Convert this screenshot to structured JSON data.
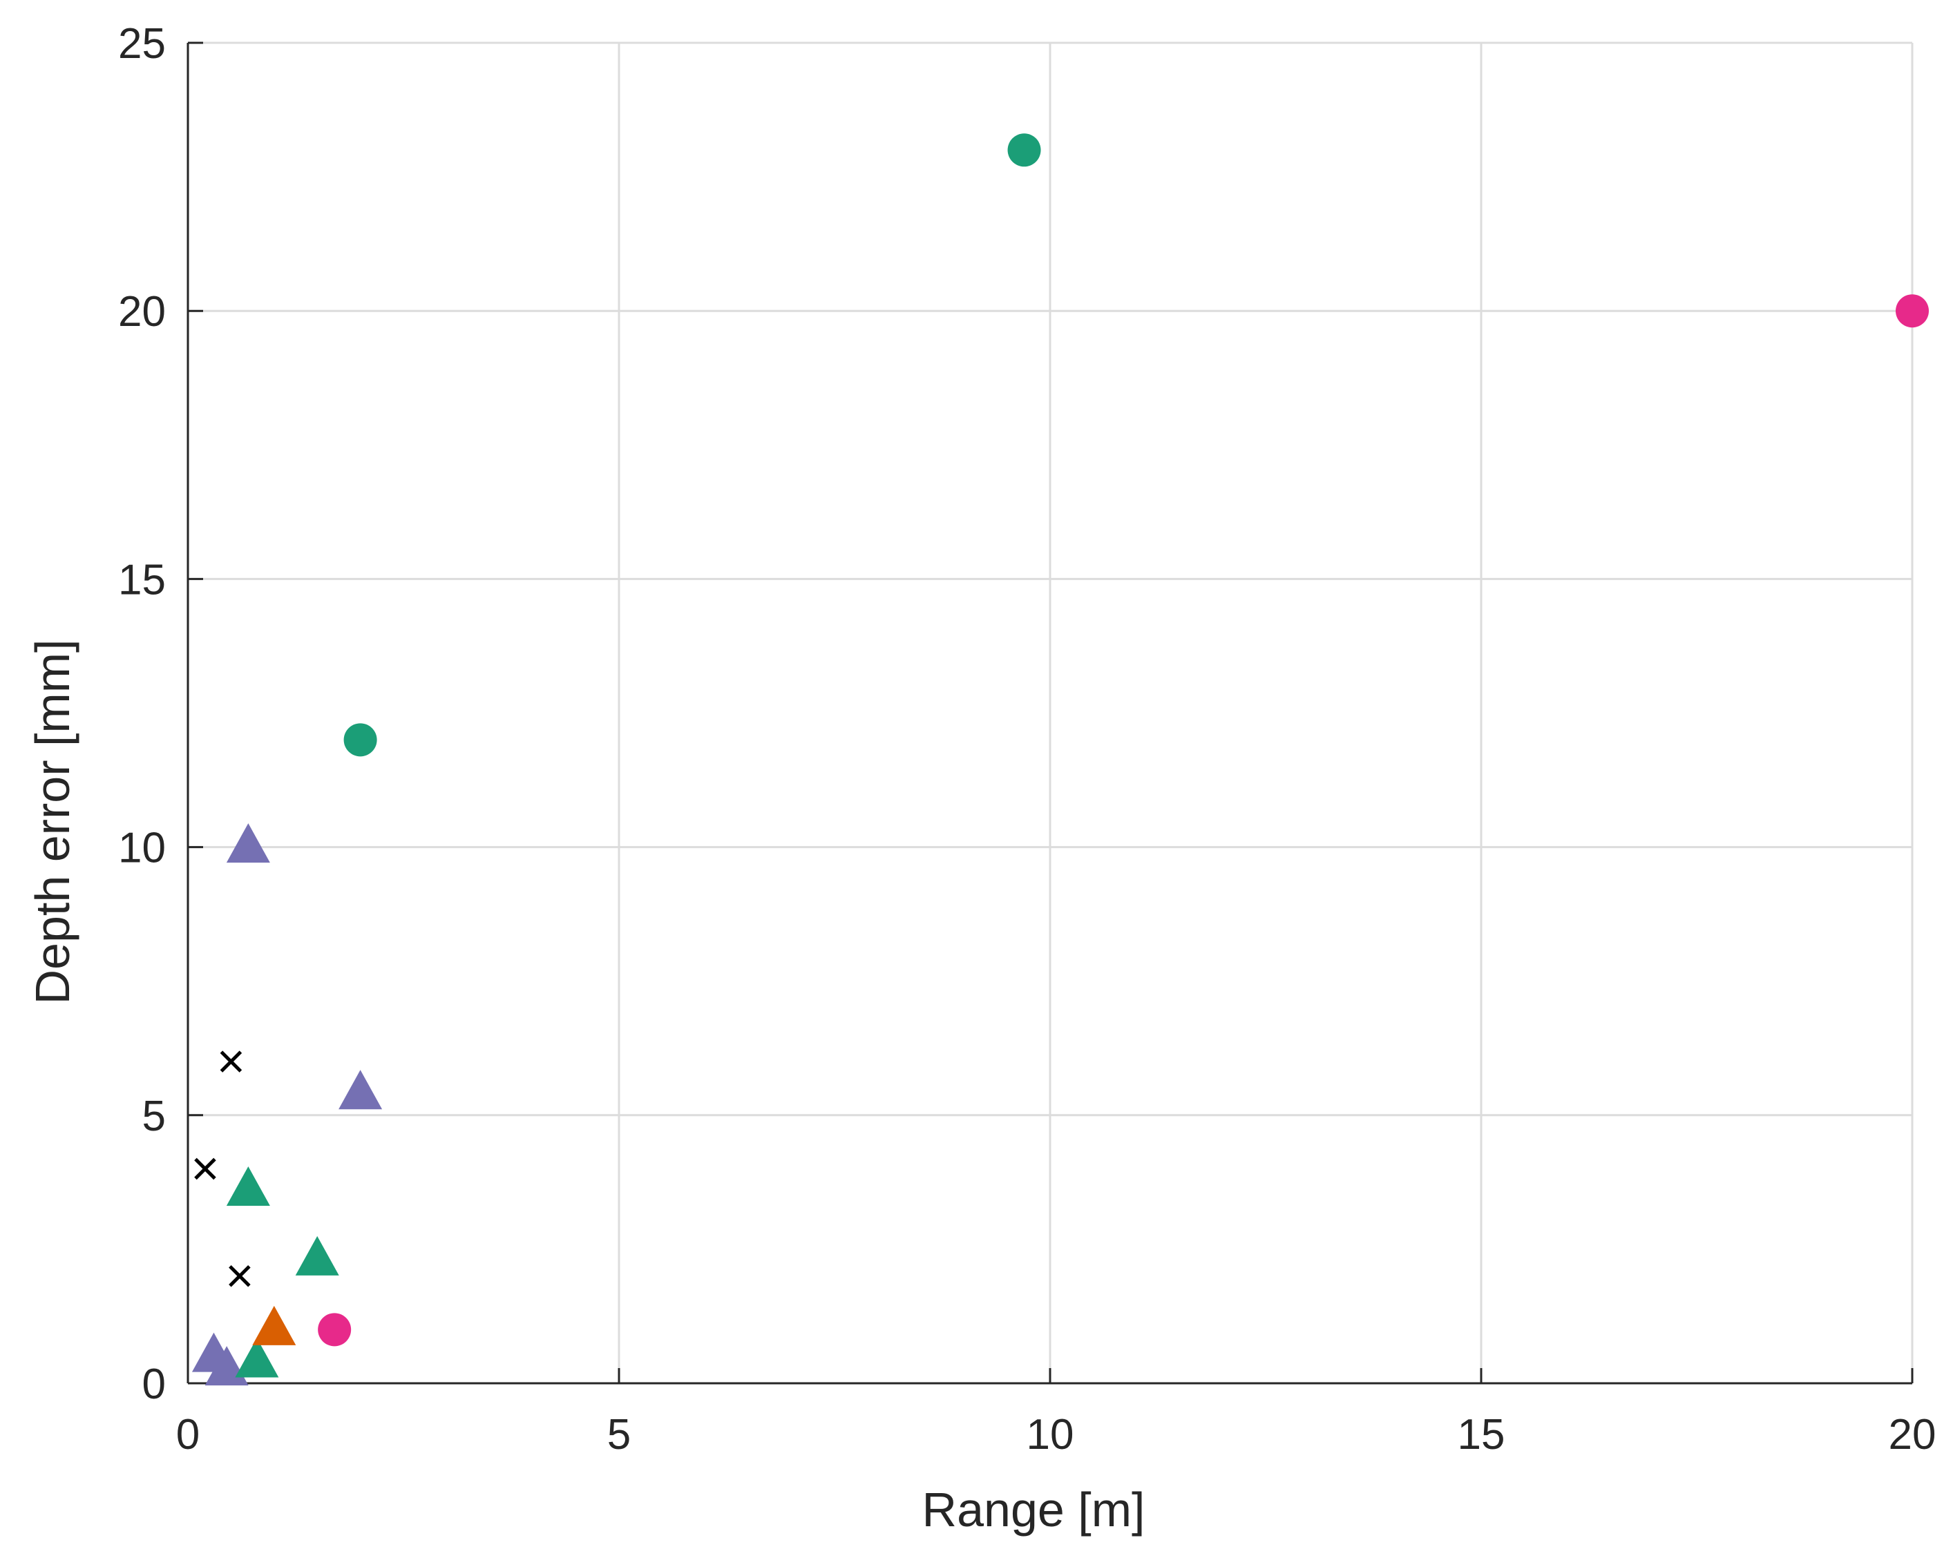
{
  "chart_data": {
    "type": "scatter",
    "title": "",
    "xlabel": "Range [m]",
    "ylabel": "Depth error [mm]",
    "xlim": [
      0,
      20
    ],
    "ylim": [
      0,
      25
    ],
    "xticks": [
      0,
      5,
      10,
      15,
      20
    ],
    "yticks": [
      0,
      5,
      10,
      15,
      20,
      25
    ],
    "xtick_labels": [
      "0",
      "5",
      "10",
      "15",
      "20"
    ],
    "ytick_labels": [
      "0",
      "5",
      "10",
      "15",
      "20",
      "25"
    ],
    "grid": true,
    "series": [
      {
        "name": "green-circles",
        "marker": "circle",
        "color": "#1b9e77",
        "x": [
          9.7,
          2.0
        ],
        "y": [
          23.0,
          12.0
        ]
      },
      {
        "name": "magenta-circles",
        "marker": "circle",
        "color": "#e7298a",
        "x": [
          20.0,
          1.7
        ],
        "y": [
          20.0,
          1.0
        ]
      },
      {
        "name": "purple-triangles",
        "marker": "triangle",
        "color": "#7570b3",
        "x": [
          0.7,
          2.0,
          0.3,
          0.45
        ],
        "y": [
          10.0,
          5.4,
          0.5,
          0.25
        ]
      },
      {
        "name": "green-triangles",
        "marker": "triangle",
        "color": "#1b9e77",
        "x": [
          0.7,
          1.5,
          0.8
        ],
        "y": [
          3.6,
          2.3,
          0.4
        ]
      },
      {
        "name": "orange-triangles",
        "marker": "triangle",
        "color": "#d95f02",
        "x": [
          1.0
        ],
        "y": [
          1.0
        ]
      },
      {
        "name": "black-crosses",
        "marker": "x",
        "color": "#000000",
        "x": [
          0.5,
          0.2,
          0.6
        ],
        "y": [
          6.0,
          4.0,
          2.0
        ]
      }
    ]
  }
}
